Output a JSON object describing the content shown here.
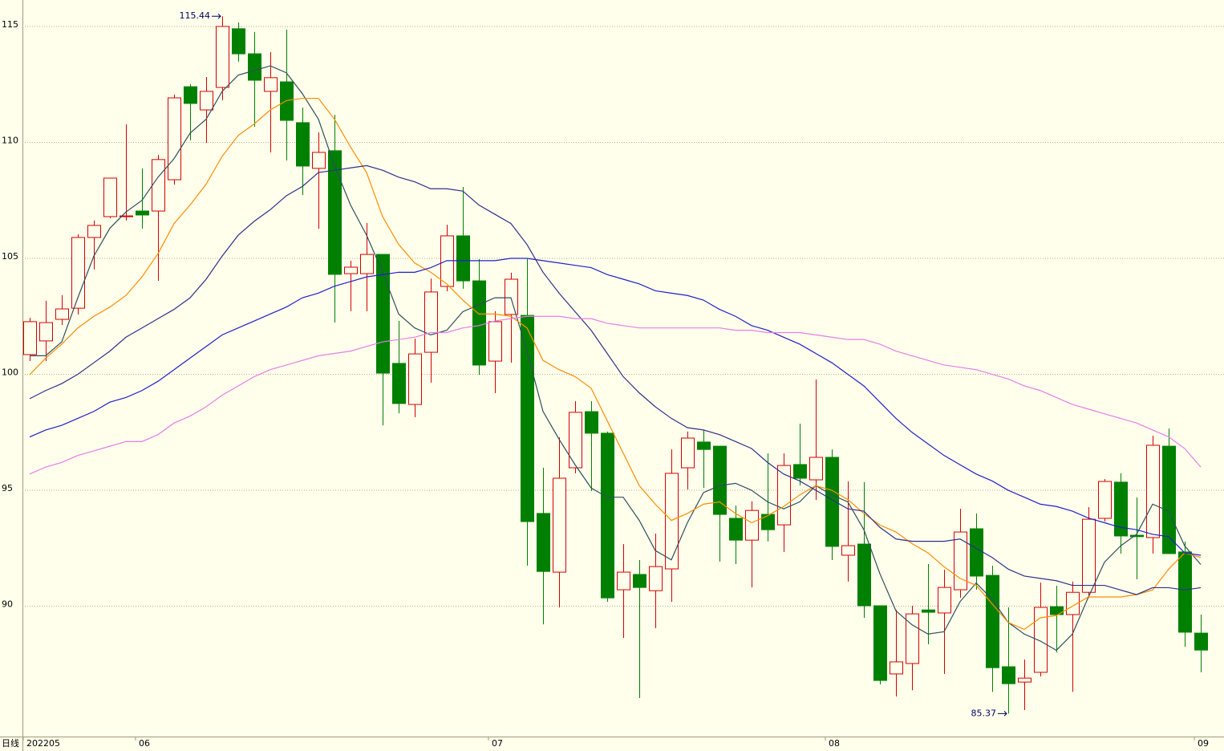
{
  "chart_data": {
    "type": "candlestick",
    "period_label": "日线",
    "categories": [
      "202205",
      null,
      null,
      null,
      null,
      null,
      null,
      "06",
      null,
      null,
      null,
      null,
      null,
      null,
      null,
      null,
      null,
      null,
      null,
      null,
      null,
      null,
      null,
      null,
      null,
      null,
      null,
      null,
      null,
      "07",
      null,
      null,
      null,
      null,
      null,
      null,
      null,
      null,
      null,
      null,
      null,
      null,
      null,
      null,
      null,
      null,
      null,
      null,
      null,
      null,
      "08",
      null,
      null,
      null,
      null,
      null,
      null,
      null,
      null,
      null,
      null,
      null,
      null,
      null,
      null,
      null,
      null,
      null,
      null,
      null,
      null,
      null,
      null,
      "09"
    ],
    "open": [
      100.85,
      101.44,
      102.37,
      102.85,
      105.9,
      106.8,
      106.8,
      107.04,
      107.04,
      108.39,
      112.4,
      111.4,
      112.37,
      114.9,
      113.82,
      112.2,
      112.61,
      110.85,
      108.88,
      109.64,
      104.34,
      104.34,
      105.17,
      100.47,
      98.7,
      100.95,
      103.79,
      105.97,
      104.03,
      100.57,
      102.58,
      102.54,
      94.0,
      91.47,
      95.97,
      98.39,
      97.46,
      90.71,
      91.37,
      90.67,
      91.61,
      95.97,
      97.08,
      96.9,
      93.79,
      92.85,
      93.96,
      93.51,
      96.11,
      95.45,
      96.42,
      92.2,
      92.68,
      90.02,
      87.08,
      87.53,
      89.84,
      89.71,
      90.71,
      93.34,
      91.33,
      87.39,
      86.73,
      87.15,
      89.98,
      89.64,
      90.6,
      93.79,
      95.35,
      93.06,
      92.96,
      96.9,
      92.34,
      88.84
    ],
    "high": [
      102.44,
      103.17,
      103.41,
      106.04,
      106.63,
      108.46,
      110.78,
      108.88,
      109.46,
      112.06,
      112.51,
      112.82,
      115.44,
      115.17,
      114.76,
      113.89,
      114.86,
      111.5,
      110.43,
      111.19,
      104.9,
      106.52,
      105.17,
      102.3,
      101.54,
      104.13,
      106.45,
      108.08,
      104.97,
      102.72,
      104.38,
      104.97,
      95.97,
      97.28,
      98.84,
      98.84,
      97.53,
      92.68,
      91.99,
      93.13,
      96.76,
      97.53,
      97.6,
      96.9,
      94.34,
      94.52,
      96.59,
      96.59,
      97.87,
      99.78,
      96.76,
      95.38,
      95.35,
      90.02,
      89.84,
      90.02,
      91.82,
      91.57,
      94.2,
      94.0,
      91.75,
      89.95,
      87.7,
      91.02,
      90.88,
      91.06,
      94.27,
      95.48,
      95.73,
      94.69,
      97.35,
      97.66,
      92.79,
      89.64
    ],
    "low": [
      100.57,
      100.57,
      102.13,
      102.58,
      104.52,
      106.73,
      106.63,
      106.28,
      104.03,
      108.18,
      110.09,
      109.98,
      111.82,
      113.48,
      110.67,
      109.57,
      109.22,
      107.73,
      106.28,
      102.23,
      102.72,
      102.72,
      97.8,
      98.32,
      98.15,
      99.64,
      103.58,
      103.69,
      99.98,
      99.19,
      100.5,
      91.75,
      89.22,
      89.95,
      95.73,
      94.97,
      90.19,
      88.63,
      86.04,
      89.05,
      90.19,
      95.03,
      95.1,
      91.92,
      91.82,
      90.81,
      92.79,
      92.34,
      95.21,
      94.58,
      91.99,
      91.06,
      89.5,
      86.63,
      86.11,
      86.38,
      88.36,
      87.08,
      90.36,
      90.71,
      86.31,
      85.37,
      85.52,
      86.97,
      88.01,
      86.31,
      90.36,
      93.65,
      92.27,
      91.16,
      92.27,
      92.27,
      88.25,
      87.15
    ],
    "close": [
      102.27,
      102.23,
      102.82,
      105.9,
      106.42,
      108.46,
      106.83,
      106.87,
      109.26,
      111.92,
      111.68,
      112.2,
      115.0,
      113.82,
      112.68,
      112.79,
      110.95,
      108.98,
      109.57,
      104.31,
      104.62,
      105.17,
      100.05,
      98.74,
      100.88,
      103.55,
      105.97,
      104.03,
      100.4,
      102.27,
      104.1,
      93.65,
      91.5,
      95.52,
      98.36,
      97.46,
      90.36,
      91.47,
      90.81,
      91.71,
      95.73,
      97.25,
      96.76,
      93.96,
      92.85,
      94.13,
      93.3,
      96.07,
      95.52,
      96.42,
      92.58,
      92.61,
      90.02,
      86.8,
      87.6,
      89.67,
      89.74,
      90.81,
      93.2,
      91.3,
      87.35,
      86.66,
      86.9,
      89.95,
      89.64,
      90.6,
      93.75,
      95.38,
      93.03,
      93.0,
      96.94,
      92.27,
      88.88,
      88.11
    ],
    "up_color": "#d40000",
    "down_color": "#008000",
    "series": [
      {
        "color": "#2f4f5f",
        "values": [
          100.8,
          100.8,
          101.4,
          103.3,
          105.1,
          106.3,
          107.0,
          107.5,
          108.5,
          109.3,
          110.4,
          111.0,
          112.2,
          112.9,
          113.1,
          113.3,
          113.0,
          112.1,
          111.0,
          109.0,
          107.3,
          106.0,
          104.4,
          102.6,
          102.0,
          101.7,
          101.9,
          102.7,
          103.0,
          103.3,
          103.3,
          101.0,
          98.4,
          97.2,
          96.1,
          95.1,
          94.7,
          94.7,
          93.7,
          92.4,
          92.0,
          93.6,
          94.9,
          95.2,
          95.3,
          95.0,
          94.5,
          94.2,
          94.5,
          95.2,
          94.8,
          94.5,
          93.3,
          91.4,
          89.8,
          89.2,
          88.8,
          88.9,
          90.2,
          91.0,
          90.3,
          89.3,
          88.8,
          88.5,
          88.1,
          88.8,
          90.4,
          91.9,
          92.6,
          93.1,
          94.4,
          94.1,
          92.6,
          91.8
        ]
      },
      {
        "color": "#ff8c00",
        "values": [
          99.98,
          100.7,
          101.3,
          102.0,
          102.5,
          102.9,
          103.4,
          104.2,
          105.2,
          106.5,
          107.3,
          108.2,
          109.4,
          110.3,
          110.8,
          111.4,
          111.8,
          111.9,
          111.9,
          111.0,
          109.8,
          108.7,
          106.8,
          105.6,
          104.8,
          104.4,
          103.9,
          103.2,
          102.6,
          102.6,
          102.5,
          102.0,
          100.6,
          100.2,
          99.9,
          99.4,
          98.0,
          96.6,
          95.2,
          94.4,
          93.7,
          94.0,
          94.4,
          94.5,
          94.0,
          93.6,
          93.9,
          94.3,
          94.8,
          95.2,
          95.0,
          94.6,
          94.0,
          93.5,
          93.2,
          92.7,
          92.3,
          91.7,
          91.2,
          90.9,
          90.1,
          89.3,
          89.0,
          89.5,
          89.6,
          90.0,
          90.4,
          90.4,
          90.4,
          90.5,
          90.7,
          91.6,
          92.3,
          92.1
        ]
      },
      {
        "color": "#30308a",
        "values": [
          98.95,
          99.3,
          99.6,
          100.0,
          100.5,
          101.0,
          101.6,
          102.0,
          102.4,
          102.8,
          103.3,
          104.1,
          105.1,
          106.0,
          106.6,
          107.1,
          107.7,
          108.1,
          108.7,
          108.8,
          108.9,
          109.0,
          108.8,
          108.5,
          108.3,
          108.0,
          108.0,
          107.9,
          107.3,
          106.9,
          106.5,
          105.6,
          104.4,
          103.5,
          102.7,
          101.9,
          100.9,
          99.9,
          99.2,
          98.6,
          98.1,
          97.7,
          97.6,
          97.4,
          97.1,
          96.8,
          96.2,
          95.7,
          95.4,
          95.0,
          94.6,
          94.2,
          94.1,
          93.4,
          92.9,
          92.8,
          92.8,
          92.8,
          92.9,
          92.5,
          92.1,
          91.6,
          91.3,
          91.2,
          91.1,
          90.9,
          90.9,
          90.9,
          90.7,
          90.5,
          90.8,
          90.8,
          90.7,
          90.8
        ]
      },
      {
        "color": "#2020cc",
        "values": [
          97.3,
          97.6,
          97.8,
          98.1,
          98.4,
          98.8,
          99.0,
          99.3,
          99.7,
          100.2,
          100.7,
          101.2,
          101.7,
          102.0,
          102.3,
          102.6,
          102.9,
          103.3,
          103.5,
          103.8,
          104.0,
          104.2,
          104.3,
          104.4,
          104.4,
          104.6,
          104.9,
          104.9,
          104.9,
          104.9,
          105.0,
          105.0,
          104.9,
          104.8,
          104.7,
          104.6,
          104.3,
          104.1,
          103.9,
          103.6,
          103.5,
          103.4,
          103.2,
          102.8,
          102.5,
          102.1,
          101.9,
          101.6,
          101.3,
          100.9,
          100.5,
          100.0,
          99.5,
          98.8,
          98.1,
          97.5,
          97.0,
          96.5,
          96.1,
          95.7,
          95.4,
          95.0,
          94.7,
          94.4,
          94.3,
          94.1,
          93.8,
          93.6,
          93.4,
          93.3,
          93.1,
          93.0,
          92.3,
          92.2
        ]
      },
      {
        "color": "#e67ee6",
        "values": [
          95.7,
          96.0,
          96.2,
          96.5,
          96.7,
          96.9,
          97.1,
          97.1,
          97.4,
          97.9,
          98.2,
          98.6,
          99.1,
          99.5,
          99.9,
          100.2,
          100.4,
          100.6,
          100.8,
          100.9,
          101.0,
          101.2,
          101.4,
          101.5,
          101.6,
          101.8,
          101.8,
          102.0,
          102.1,
          102.3,
          102.4,
          102.5,
          102.5,
          102.5,
          102.4,
          102.4,
          102.2,
          102.1,
          102.0,
          102.0,
          102.0,
          102.0,
          102.0,
          102.0,
          101.9,
          101.9,
          101.8,
          101.8,
          101.8,
          101.7,
          101.6,
          101.5,
          101.5,
          101.3,
          101.0,
          100.8,
          100.6,
          100.4,
          100.3,
          100.2,
          100.0,
          99.8,
          99.5,
          99.3,
          99.0,
          98.7,
          98.5,
          98.3,
          98.1,
          97.9,
          97.6,
          97.3,
          96.8,
          96.0
        ]
      }
    ],
    "annotations": [
      {
        "value": 115.44,
        "label": "115.44"
      },
      {
        "value": 85.37,
        "label": "85.37"
      }
    ],
    "ylim": [
      84.38,
      116.14
    ],
    "yticks": [
      90,
      95,
      100,
      105,
      110,
      115
    ],
    "grid": true
  }
}
